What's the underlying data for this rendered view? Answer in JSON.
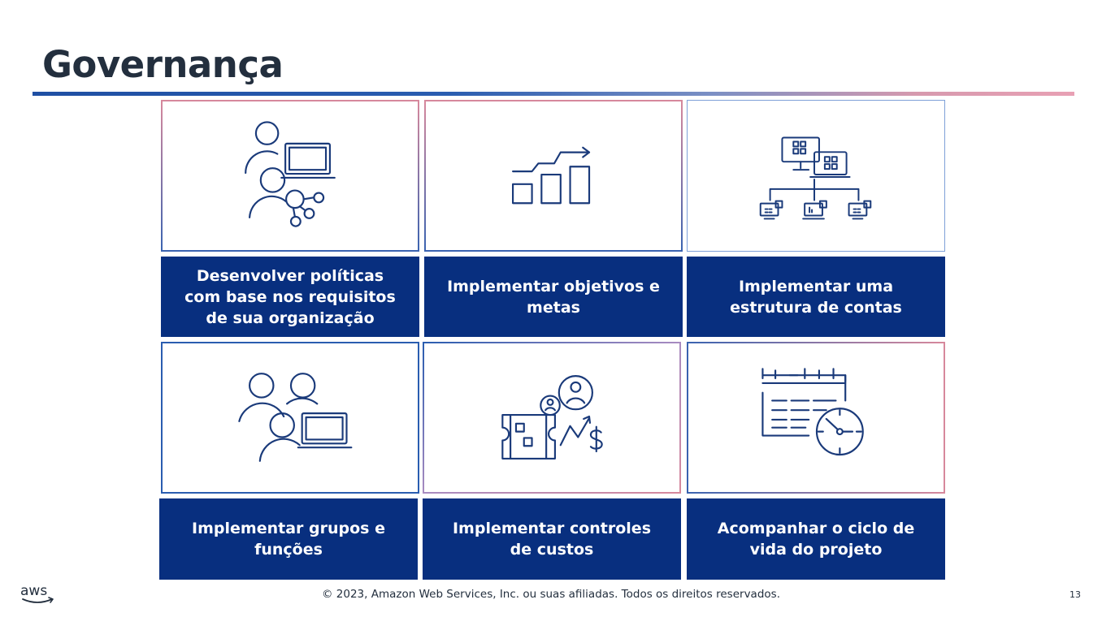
{
  "slide": {
    "title": "Governança",
    "footer": "© 2023, Amazon Web Services, Inc. ou suas afiliadas. Todos os direitos reservados.",
    "page_number": "13",
    "logo": "aws"
  },
  "tiles": [
    {
      "icon": "people-laptop-network-icon",
      "label": "Desenvolver políticas com base nos requisitos de sua organização"
    },
    {
      "icon": "growth-bar-chart-icon",
      "label": "Implementar objetivos e metas"
    },
    {
      "icon": "account-structure-icon",
      "label": "Implementar uma estrutura de contas"
    },
    {
      "icon": "user-groups-icon",
      "label": "Implementar grupos e funções"
    },
    {
      "icon": "cost-controls-icon",
      "label": "Implementar controles de custos"
    },
    {
      "icon": "calendar-clock-icon",
      "label": "Acompanhar o ciclo de vida do projeto"
    }
  ],
  "colors": {
    "label_bg": "#082f7f",
    "icon_stroke": "#1a3a7a",
    "title_text": "#232f3e",
    "rule_start": "#1f4fa3",
    "rule_end": "#e8a0b4"
  }
}
